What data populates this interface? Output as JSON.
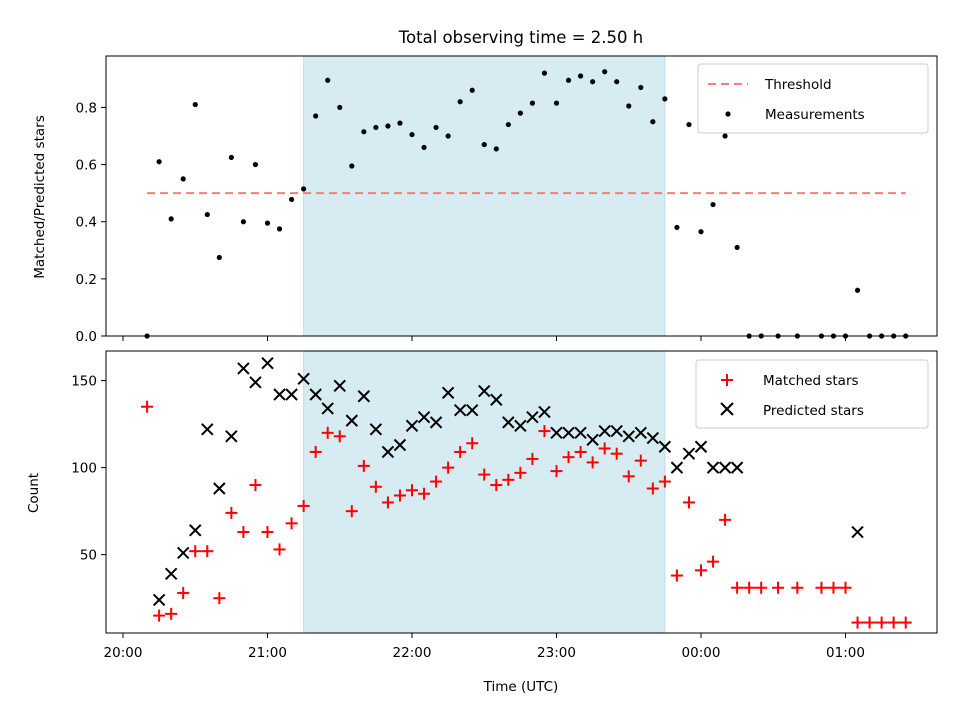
{
  "chart_data": [
    {
      "type": "scatter",
      "title": "Total observing time = 2.50 h",
      "ylabel": "Matched/Predicted stars",
      "xlabel": "",
      "xlim": [
        "20:00",
        "01:40"
      ],
      "ylim": [
        0,
        0.98
      ],
      "yticks": [
        "0.0",
        "0.2",
        "0.4",
        "0.6",
        "0.8"
      ],
      "yticks_values": [
        0,
        0.2,
        0.4,
        0.6,
        0.8
      ],
      "legend_position": "top-right",
      "shaded_span": {
        "start": "21:15",
        "end": "23:45",
        "color": "#add8e6"
      },
      "threshold": {
        "name": "Threshold",
        "value": 0.5,
        "x_start": "20:10",
        "x_end": "01:25",
        "color": "#f08080",
        "style": "dashed"
      },
      "series": [
        {
          "name": "Measurements",
          "color": "#000000",
          "marker": "dot",
          "points": [
            [
              "20:10",
              0.0
            ],
            [
              "20:15",
              0.61
            ],
            [
              "20:20",
              0.41
            ],
            [
              "20:25",
              0.55
            ],
            [
              "20:30",
              0.81
            ],
            [
              "20:35",
              0.425
            ],
            [
              "20:40",
              0.275
            ],
            [
              "20:45",
              0.625
            ],
            [
              "20:50",
              0.4
            ],
            [
              "20:55",
              0.6
            ],
            [
              "21:00",
              0.395
            ],
            [
              "21:05",
              0.375
            ],
            [
              "21:10",
              0.478
            ],
            [
              "21:15",
              0.515
            ],
            [
              "21:20",
              0.77
            ],
            [
              "21:25",
              0.895
            ],
            [
              "21:30",
              0.8
            ],
            [
              "21:35",
              0.595
            ],
            [
              "21:40",
              0.715
            ],
            [
              "21:45",
              0.73
            ],
            [
              "21:50",
              0.735
            ],
            [
              "21:55",
              0.745
            ],
            [
              "22:00",
              0.705
            ],
            [
              "22:05",
              0.66
            ],
            [
              "22:10",
              0.73
            ],
            [
              "22:15",
              0.7
            ],
            [
              "22:20",
              0.82
            ],
            [
              "22:25",
              0.86
            ],
            [
              "22:30",
              0.67
            ],
            [
              "22:35",
              0.655
            ],
            [
              "22:40",
              0.74
            ],
            [
              "22:45",
              0.78
            ],
            [
              "22:50",
              0.815
            ],
            [
              "22:55",
              0.92
            ],
            [
              "23:00",
              0.815
            ],
            [
              "23:05",
              0.895
            ],
            [
              "23:10",
              0.91
            ],
            [
              "23:15",
              0.89
            ],
            [
              "23:20",
              0.925
            ],
            [
              "23:25",
              0.89
            ],
            [
              "23:30",
              0.805
            ],
            [
              "23:35",
              0.87
            ],
            [
              "23:40",
              0.75
            ],
            [
              "23:45",
              0.83
            ],
            [
              "23:50",
              0.38
            ],
            [
              "23:55",
              0.74
            ],
            [
              "00:00",
              0.365
            ],
            [
              "00:05",
              0.46
            ],
            [
              "00:10",
              0.7
            ],
            [
              "00:15",
              0.31
            ],
            [
              "00:20",
              0.0
            ],
            [
              "00:25",
              0.0
            ],
            [
              "00:32",
              0.0
            ],
            [
              "00:40",
              0.0
            ],
            [
              "00:50",
              0.0
            ],
            [
              "00:55",
              0.0
            ],
            [
              "01:00",
              0.0
            ],
            [
              "01:05",
              0.16
            ],
            [
              "01:10",
              0.0
            ],
            [
              "01:15",
              0.0
            ],
            [
              "01:20",
              0.0
            ],
            [
              "01:25",
              0.0
            ]
          ]
        }
      ]
    },
    {
      "type": "scatter",
      "title": "",
      "xlabel": "Time (UTC)",
      "ylabel": "Count",
      "xlim": [
        "20:00",
        "01:40"
      ],
      "ylim": [
        5,
        167
      ],
      "xticks": [
        "20:00",
        "21:00",
        "22:00",
        "23:00",
        "00:00",
        "01:00"
      ],
      "yticks": [
        "50",
        "100",
        "150"
      ],
      "yticks_values": [
        50,
        100,
        150
      ],
      "legend_position": "top-right",
      "shaded_span": {
        "start": "21:15",
        "end": "23:45",
        "color": "#add8e6"
      },
      "series": [
        {
          "name": "Matched stars",
          "color": "#ff0000",
          "marker": "plus",
          "points": [
            [
              "20:10",
              135
            ],
            [
              "20:15",
              15
            ],
            [
              "20:20",
              16
            ],
            [
              "20:25",
              28
            ],
            [
              "20:30",
              52
            ],
            [
              "20:35",
              52
            ],
            [
              "20:40",
              25
            ],
            [
              "20:45",
              74
            ],
            [
              "20:50",
              63
            ],
            [
              "20:55",
              90
            ],
            [
              "21:00",
              63
            ],
            [
              "21:05",
              53
            ],
            [
              "21:10",
              68
            ],
            [
              "21:15",
              78
            ],
            [
              "21:20",
              109
            ],
            [
              "21:25",
              120
            ],
            [
              "21:30",
              118
            ],
            [
              "21:35",
              75
            ],
            [
              "21:40",
              101
            ],
            [
              "21:45",
              89
            ],
            [
              "21:50",
              80
            ],
            [
              "21:55",
              84
            ],
            [
              "22:00",
              87
            ],
            [
              "22:05",
              85
            ],
            [
              "22:10",
              92
            ],
            [
              "22:15",
              100
            ],
            [
              "22:20",
              109
            ],
            [
              "22:25",
              114
            ],
            [
              "22:30",
              96
            ],
            [
              "22:35",
              90
            ],
            [
              "22:40",
              93
            ],
            [
              "22:45",
              97
            ],
            [
              "22:50",
              105
            ],
            [
              "22:55",
              121
            ],
            [
              "23:00",
              98
            ],
            [
              "23:05",
              106
            ],
            [
              "23:10",
              109
            ],
            [
              "23:15",
              103
            ],
            [
              "23:20",
              111
            ],
            [
              "23:25",
              108
            ],
            [
              "23:30",
              95
            ],
            [
              "23:35",
              104
            ],
            [
              "23:40",
              88
            ],
            [
              "23:45",
              92
            ],
            [
              "23:50",
              38
            ],
            [
              "23:55",
              80
            ],
            [
              "00:00",
              41
            ],
            [
              "00:05",
              46
            ],
            [
              "00:10",
              70
            ],
            [
              "00:15",
              31
            ],
            [
              "00:20",
              31
            ],
            [
              "00:25",
              31
            ],
            [
              "00:32",
              31
            ],
            [
              "00:40",
              31
            ],
            [
              "00:50",
              31
            ],
            [
              "00:55",
              31
            ],
            [
              "01:00",
              31
            ],
            [
              "01:05",
              11
            ],
            [
              "01:10",
              11
            ],
            [
              "01:15",
              11
            ],
            [
              "01:20",
              11
            ],
            [
              "01:25",
              11
            ]
          ]
        },
        {
          "name": "Predicted stars",
          "color": "#000000",
          "marker": "cross",
          "points": [
            [
              "20:15",
              24
            ],
            [
              "20:20",
              39
            ],
            [
              "20:25",
              51
            ],
            [
              "20:30",
              64
            ],
            [
              "20:35",
              122
            ],
            [
              "20:40",
              88
            ],
            [
              "20:45",
              118
            ],
            [
              "20:50",
              157
            ],
            [
              "20:55",
              149
            ],
            [
              "21:00",
              160
            ],
            [
              "21:05",
              142
            ],
            [
              "21:10",
              142
            ],
            [
              "21:15",
              151
            ],
            [
              "21:20",
              142
            ],
            [
              "21:25",
              134
            ],
            [
              "21:30",
              147
            ],
            [
              "21:35",
              127
            ],
            [
              "21:40",
              141
            ],
            [
              "21:45",
              122
            ],
            [
              "21:50",
              109
            ],
            [
              "21:55",
              113
            ],
            [
              "22:00",
              124
            ],
            [
              "22:05",
              129
            ],
            [
              "22:10",
              126
            ],
            [
              "22:15",
              143
            ],
            [
              "22:20",
              133
            ],
            [
              "22:25",
              133
            ],
            [
              "22:30",
              144
            ],
            [
              "22:35",
              139
            ],
            [
              "22:40",
              126
            ],
            [
              "22:45",
              124
            ],
            [
              "22:50",
              129
            ],
            [
              "22:55",
              132
            ],
            [
              "23:00",
              120
            ],
            [
              "23:05",
              120
            ],
            [
              "23:10",
              120
            ],
            [
              "23:15",
              116
            ],
            [
              "23:20",
              121
            ],
            [
              "23:25",
              121
            ],
            [
              "23:30",
              118
            ],
            [
              "23:35",
              120
            ],
            [
              "23:40",
              117
            ],
            [
              "23:45",
              112
            ],
            [
              "23:50",
              100
            ],
            [
              "23:55",
              108
            ],
            [
              "00:00",
              112
            ],
            [
              "00:05",
              100
            ],
            [
              "00:10",
              100
            ],
            [
              "00:15",
              100
            ],
            [
              "01:05",
              63
            ]
          ]
        }
      ]
    }
  ]
}
